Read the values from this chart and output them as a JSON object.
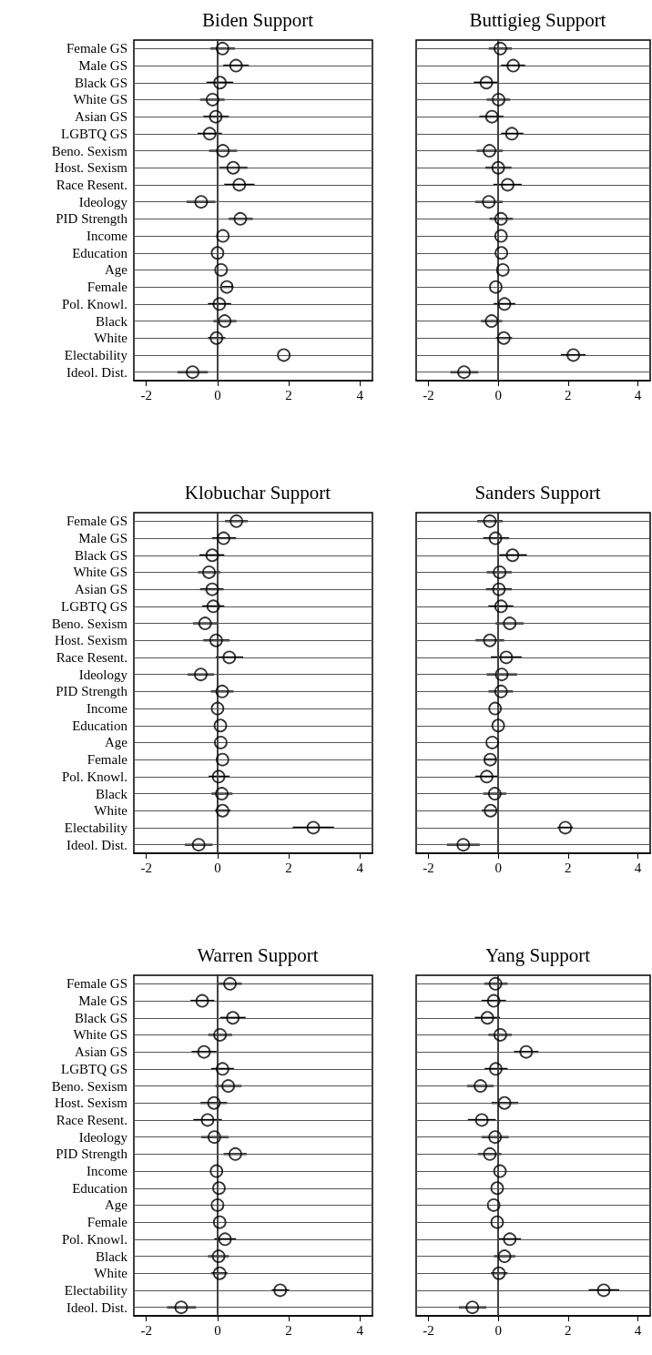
{
  "chart_data": [
    {
      "type": "scatter",
      "orientation": "horizontal",
      "title": "Biden Support",
      "categories": [
        "Female GS",
        "Male GS",
        "Black GS",
        "White GS",
        "Asian GS",
        "LGBTQ GS",
        "Beno. Sexism",
        "Host. Sexism",
        "Race Resent.",
        "Ideology",
        "PID Strength",
        "Income",
        "Education",
        "Age",
        "Female",
        "Pol. Knowl.",
        "Black",
        "White",
        "Electability",
        "Ideol. Dist."
      ],
      "values": [
        0.14,
        0.52,
        0.07,
        -0.14,
        -0.05,
        -0.22,
        0.15,
        0.44,
        0.61,
        -0.46,
        0.64,
        0.15,
        0.0,
        0.1,
        0.26,
        0.05,
        0.2,
        -0.03,
        1.86,
        -0.7
      ],
      "errors": [
        [
          -0.2,
          0.49
        ],
        [
          0.16,
          0.88
        ],
        [
          -0.31,
          0.44
        ],
        [
          -0.49,
          0.2
        ],
        [
          -0.4,
          0.32
        ],
        [
          -0.56,
          0.12
        ],
        [
          -0.24,
          0.55
        ],
        [
          0.05,
          0.84
        ],
        [
          0.19,
          1.04
        ],
        [
          -0.87,
          -0.06
        ],
        [
          0.31,
          0.99
        ],
        null,
        null,
        null,
        [
          0.13,
          0.44
        ],
        [
          -0.27,
          0.38
        ],
        [
          -0.12,
          0.53
        ],
        [
          -0.27,
          0.22
        ],
        null,
        [
          -1.13,
          -0.27
        ]
      ],
      "color": "#000000",
      "marker": "circle",
      "grid": "y",
      "xlim": [
        -2.35,
        4.35
      ],
      "xticks": [
        -2,
        0,
        2,
        4
      ],
      "ref_lines": [
        {
          "axis": "x",
          "value": 0,
          "color": "#444444"
        }
      ]
    },
    {
      "type": "scatter",
      "orientation": "horizontal",
      "title": "Buttigieg Support",
      "tick_labels": "x",
      "categories": [
        null,
        null,
        null,
        null,
        null,
        null,
        null,
        null,
        null,
        null,
        null,
        null,
        null,
        null,
        null,
        null,
        null,
        null,
        null,
        null
      ],
      "values": [
        0.06,
        0.43,
        -0.34,
        0.01,
        -0.18,
        0.39,
        -0.25,
        0.0,
        0.27,
        -0.27,
        0.08,
        0.08,
        0.09,
        0.13,
        -0.07,
        0.18,
        -0.19,
        0.16,
        2.15,
        -0.98
      ],
      "errors": [
        [
          -0.27,
          0.39
        ],
        [
          0.08,
          0.77
        ],
        [
          -0.7,
          0.0
        ],
        [
          -0.33,
          0.34
        ],
        [
          -0.54,
          0.15
        ],
        [
          0.08,
          0.72
        ],
        [
          -0.62,
          0.13
        ],
        [
          -0.37,
          0.38
        ],
        [
          -0.14,
          0.67
        ],
        [
          -0.66,
          0.13
        ],
        [
          -0.25,
          0.42
        ],
        null,
        null,
        null,
        null,
        [
          -0.13,
          0.49
        ],
        [
          -0.5,
          0.11
        ],
        [
          -0.07,
          0.4
        ],
        [
          1.79,
          2.5
        ],
        [
          -1.37,
          -0.57
        ]
      ],
      "color": "#000000",
      "marker": "circle",
      "grid": "y",
      "xlim": [
        -2.35,
        4.35
      ],
      "xticks": [
        -2,
        0,
        2,
        4
      ],
      "ref_lines": [
        {
          "axis": "x",
          "value": 0,
          "color": "#444444"
        }
      ]
    },
    {
      "type": "scatter",
      "orientation": "horizontal",
      "title": "Klobuchar Support",
      "categories": [
        "Female GS",
        "Male GS",
        "Black GS",
        "White GS",
        "Asian GS",
        "LGBTQ GS",
        "Beno. Sexism",
        "Host. Sexism",
        "Race Resent.",
        "Ideology",
        "PID Strength",
        "Income",
        "Education",
        "Age",
        "Female",
        "Pol. Knowl.",
        "Black",
        "White",
        "Electability",
        "Ideol. Dist."
      ],
      "values": [
        0.53,
        0.17,
        -0.15,
        -0.24,
        -0.15,
        -0.12,
        -0.35,
        -0.04,
        0.33,
        -0.47,
        0.13,
        0.0,
        0.08,
        0.09,
        0.14,
        0.03,
        0.12,
        0.14,
        2.69,
        -0.53
      ],
      "errors": [
        [
          0.21,
          0.85
        ],
        [
          -0.15,
          0.52
        ],
        [
          -0.51,
          0.19
        ],
        [
          -0.55,
          0.08
        ],
        [
          -0.49,
          0.17
        ],
        [
          -0.43,
          0.19
        ],
        [
          -0.69,
          0.0
        ],
        [
          -0.4,
          0.34
        ],
        [
          -0.05,
          0.72
        ],
        [
          -0.84,
          -0.1
        ],
        [
          -0.19,
          0.45
        ],
        null,
        null,
        null,
        null,
        [
          -0.25,
          0.34
        ],
        [
          -0.17,
          0.42
        ],
        [
          -0.07,
          0.37
        ],
        [
          2.11,
          3.27
        ],
        [
          -0.92,
          -0.14
        ]
      ],
      "color": "#000000",
      "marker": "circle",
      "grid": "y",
      "xlim": [
        -2.35,
        4.35
      ],
      "xticks": [
        -2,
        0,
        2,
        4
      ],
      "ref_lines": [
        {
          "axis": "x",
          "value": 0,
          "color": "#444444"
        }
      ]
    },
    {
      "type": "scatter",
      "orientation": "horizontal",
      "title": "Sanders Support",
      "tick_labels": "x",
      "categories": [
        null,
        null,
        null,
        null,
        null,
        null,
        null,
        null,
        null,
        null,
        null,
        null,
        null,
        null,
        null,
        null,
        null,
        null,
        null,
        null
      ],
      "values": [
        -0.24,
        -0.08,
        0.41,
        0.04,
        0.02,
        0.08,
        0.33,
        -0.24,
        0.23,
        0.1,
        0.08,
        -0.09,
        0.0,
        -0.17,
        -0.23,
        -0.33,
        -0.1,
        -0.22,
        1.92,
        -1.0
      ],
      "errors": [
        [
          -0.6,
          0.13
        ],
        [
          -0.43,
          0.31
        ],
        [
          0.03,
          0.82
        ],
        [
          -0.33,
          0.39
        ],
        [
          -0.35,
          0.39
        ],
        [
          -0.28,
          0.43
        ],
        [
          -0.08,
          0.73
        ],
        [
          -0.65,
          0.17
        ],
        [
          -0.21,
          0.67
        ],
        [
          -0.33,
          0.54
        ],
        [
          -0.28,
          0.42
        ],
        null,
        null,
        null,
        [
          -0.39,
          -0.05
        ],
        [
          -0.66,
          -0.01
        ],
        [
          -0.43,
          0.23
        ],
        [
          -0.47,
          -0.01
        ],
        [
          1.7,
          2.14
        ],
        [
          -1.47,
          -0.53
        ]
      ],
      "color": "#000000",
      "marker": "circle",
      "grid": "y",
      "xlim": [
        -2.35,
        4.35
      ],
      "xticks": [
        -2,
        0,
        2,
        4
      ],
      "ref_lines": [
        {
          "axis": "x",
          "value": 0,
          "color": "#444444"
        }
      ]
    },
    {
      "type": "scatter",
      "orientation": "horizontal",
      "title": "Warren Support",
      "categories": [
        "Female GS",
        "Male GS",
        "Black GS",
        "White GS",
        "Asian GS",
        "LGBTQ GS",
        "Beno. Sexism",
        "Host. Sexism",
        "Race Resent.",
        "Ideology",
        "PID Strength",
        "Income",
        "Education",
        "Age",
        "Female",
        "Pol. Knowl.",
        "Black",
        "White",
        "Electability",
        "Ideol. Dist."
      ],
      "values": [
        0.35,
        -0.43,
        0.43,
        0.07,
        -0.38,
        0.14,
        0.3,
        -0.1,
        -0.28,
        -0.09,
        0.5,
        -0.03,
        0.04,
        0.0,
        0.06,
        0.21,
        0.03,
        0.06,
        1.76,
        -1.02
      ],
      "errors": [
        [
          0.03,
          0.68
        ],
        [
          -0.76,
          -0.09
        ],
        [
          0.07,
          0.79
        ],
        [
          -0.26,
          0.41
        ],
        [
          -0.73,
          -0.03
        ],
        [
          -0.18,
          0.46
        ],
        [
          -0.06,
          0.67
        ],
        [
          -0.48,
          0.27
        ],
        [
          -0.68,
          0.12
        ],
        [
          -0.46,
          0.31
        ],
        [
          0.17,
          0.82
        ],
        null,
        null,
        null,
        null,
        [
          -0.09,
          0.52
        ],
        [
          -0.27,
          0.32
        ],
        [
          -0.18,
          0.28
        ],
        [
          1.52,
          2.01
        ],
        [
          -1.42,
          -0.6
        ]
      ],
      "color": "#000000",
      "marker": "circle",
      "grid": "y",
      "xlim": [
        -2.35,
        4.35
      ],
      "xticks": [
        -2,
        0,
        2,
        4
      ],
      "ref_lines": [
        {
          "axis": "x",
          "value": 0,
          "color": "#444444"
        }
      ]
    },
    {
      "type": "scatter",
      "orientation": "horizontal",
      "title": "Yang Support",
      "tick_labels": "x",
      "categories": [
        null,
        null,
        null,
        null,
        null,
        null,
        null,
        null,
        null,
        null,
        null,
        null,
        null,
        null,
        null,
        null,
        null,
        null,
        null,
        null
      ],
      "values": [
        -0.08,
        -0.13,
        -0.31,
        0.06,
        0.8,
        -0.07,
        -0.51,
        0.18,
        -0.47,
        -0.09,
        -0.24,
        0.05,
        -0.03,
        -0.13,
        -0.03,
        0.33,
        0.18,
        0.02,
        3.02,
        -0.74
      ],
      "errors": [
        [
          -0.4,
          0.27
        ],
        [
          -0.48,
          0.22
        ],
        [
          -0.67,
          0.05
        ],
        [
          -0.28,
          0.39
        ],
        [
          0.45,
          1.15
        ],
        [
          -0.39,
          0.27
        ],
        [
          -0.89,
          -0.13
        ],
        [
          -0.19,
          0.57
        ],
        [
          -0.87,
          -0.07
        ],
        [
          -0.48,
          0.3
        ],
        [
          -0.58,
          0.09
        ],
        null,
        null,
        null,
        null,
        [
          0.01,
          0.65
        ],
        [
          -0.12,
          0.49
        ],
        [
          -0.21,
          0.27
        ],
        [
          2.59,
          3.46
        ],
        [
          -1.13,
          -0.34
        ]
      ],
      "color": "#000000",
      "marker": "circle",
      "grid": "y",
      "xlim": [
        -2.35,
        4.35
      ],
      "xticks": [
        -2,
        0,
        2,
        4
      ],
      "ref_lines": [
        {
          "axis": "x",
          "value": 0,
          "color": "#444444"
        }
      ]
    }
  ]
}
